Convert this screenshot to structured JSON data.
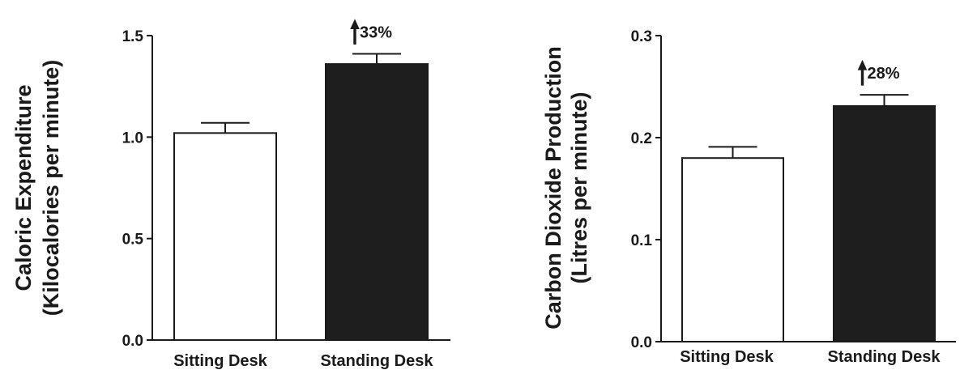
{
  "chart_data": [
    {
      "type": "bar",
      "ylabel_line1": "Caloric Expenditure",
      "ylabel_line2": "(Kilocalories per minute)",
      "categories": [
        "Sitting Desk",
        "Standing Desk"
      ],
      "values": [
        1.02,
        1.36
      ],
      "errors": [
        0.05,
        0.05
      ],
      "bar_fills": [
        "#ffffff",
        "#1e1e1e"
      ],
      "ylim": [
        0.0,
        1.5
      ],
      "yticks": [
        0.0,
        0.5,
        1.0,
        1.5
      ],
      "ytick_labels": [
        "0.0",
        "0.5",
        "1.0",
        "1.5"
      ],
      "annotation": "33%",
      "annotation_icon": "up-arrow-icon"
    },
    {
      "type": "bar",
      "ylabel_line1": "Carbon Dioxide Production",
      "ylabel_line2": "(Litres per minute)",
      "categories": [
        "Sitting Desk",
        "Standing Desk"
      ],
      "values": [
        0.18,
        0.231
      ],
      "errors": [
        0.011,
        0.011
      ],
      "bar_fills": [
        "#ffffff",
        "#1e1e1e"
      ],
      "ylim": [
        0.0,
        0.3
      ],
      "yticks": [
        0.0,
        0.1,
        0.2,
        0.3
      ],
      "ytick_labels": [
        "0.0",
        "0.1",
        "0.2",
        "0.3"
      ],
      "annotation": "28%",
      "annotation_icon": "up-arrow-icon"
    }
  ]
}
